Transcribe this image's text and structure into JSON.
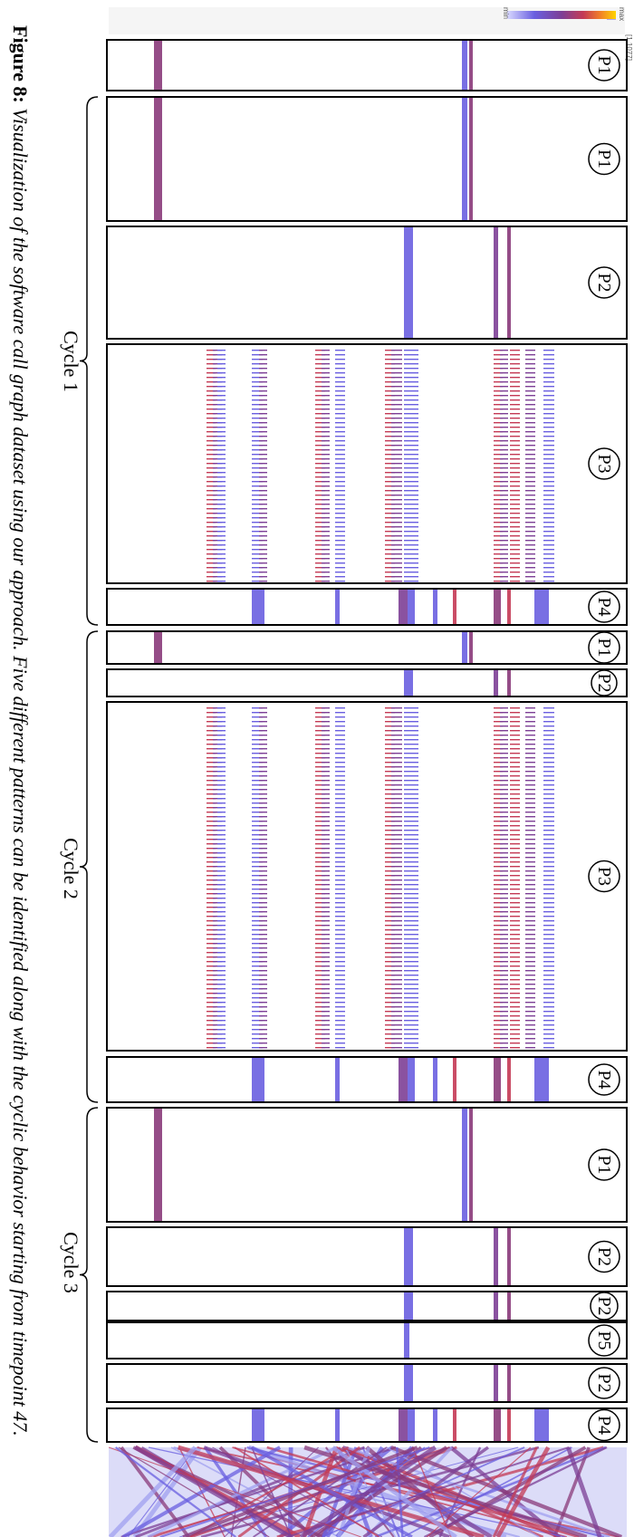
{
  "figure": {
    "label": "Figure 8:",
    "caption": "Visualization of the software call graph dataset using our approach. Five different patterns can be identified along with the cyclic behavior starting from timepoint 47."
  },
  "legend": {
    "max_label": "max",
    "min_label": "min",
    "range_label": "[1,1077]",
    "colors": [
      "#ffd400",
      "#f07c2a",
      "#c43a55",
      "#7d3f96",
      "#6a5fe0",
      "#c8c8ff"
    ]
  },
  "cycles": [
    {
      "label": "Cycle 1"
    },
    {
      "label": "Cycle 2"
    },
    {
      "label": "Cycle 3"
    }
  ],
  "patterns": [
    {
      "label": "P1"
    },
    {
      "label": "P1"
    },
    {
      "label": "P2"
    },
    {
      "label": "P3"
    },
    {
      "label": "P4"
    },
    {
      "label": "P1"
    },
    {
      "label": "P2"
    },
    {
      "label": "P3"
    },
    {
      "label": "P4"
    },
    {
      "label": "P1"
    },
    {
      "label": "P2"
    },
    {
      "label": "P2"
    },
    {
      "label": "P5"
    },
    {
      "label": "P2"
    },
    {
      "label": "P4"
    }
  ]
}
